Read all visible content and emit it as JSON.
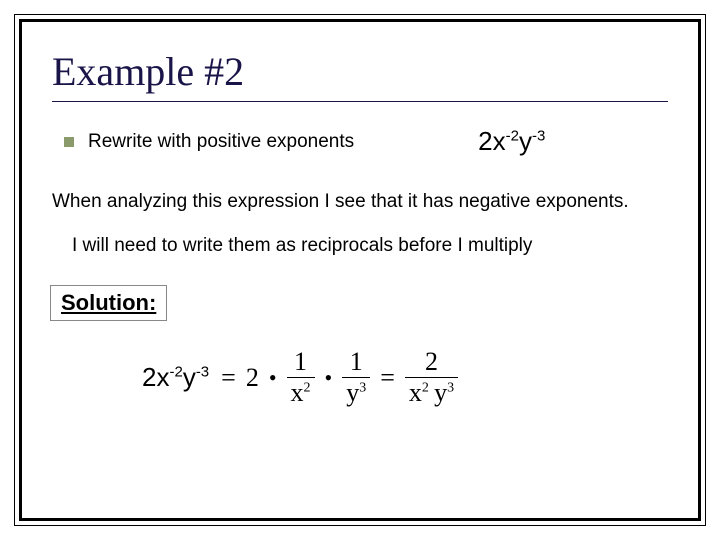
{
  "title": "Example #2",
  "bullet_text": "Rewrite with positive exponents",
  "expression_display": "2x^{-2}y^{-3}",
  "analysis_line": "When analyzing this expression I see that it has negative exponents.",
  "reciprocals_line": "I will need to write them as  reciprocals before I multiply",
  "solution_label": "Solution:",
  "equation": {
    "lhs": "2x^{-2}y^{-3}",
    "step1_coef": "2",
    "frac1_num": "1",
    "frac1_den_base": "x",
    "frac1_den_exp": "2",
    "frac2_num": "1",
    "frac2_den_base": "y",
    "frac2_den_exp": "3",
    "result_num": "2",
    "result_den_b1": "x",
    "result_den_e1": "2",
    "result_den_b2": "y",
    "result_den_e2": "3"
  },
  "colors": {
    "title_color": "#1a1548",
    "bullet_color": "#8b9a6b",
    "text_color": "#000000",
    "background": "#ffffff"
  },
  "fonts": {
    "title_family": "Times New Roman",
    "title_size_pt": 30,
    "body_family": "Arial",
    "body_size_pt": 14,
    "math_size_pt": 20
  }
}
